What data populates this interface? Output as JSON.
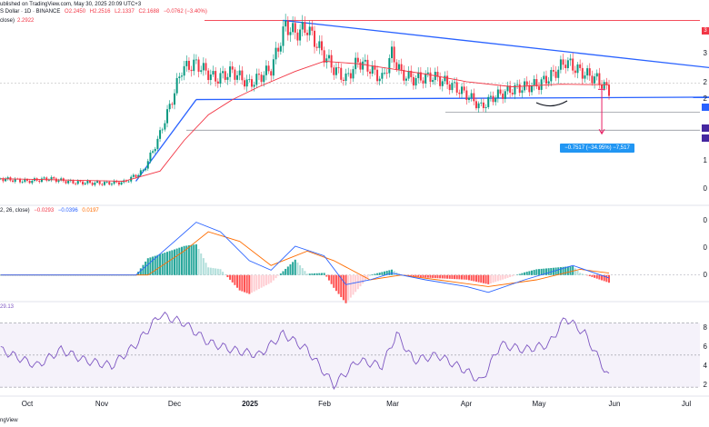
{
  "header": {
    "published": "ublished on TradingView.com, May 30, 2025 20:09 UTC+3",
    "symbol": "S Dollar · 1D · BINANCE",
    "ohlc": {
      "o": "O2.2450",
      "h": "H2.2516",
      "l": "L2.1337",
      "c": "C2.1688",
      "chg": "−0.0762 (−3.40%)"
    },
    "ma_label": "close)",
    "ma_value": "2.2922",
    "macd_label": "2, 26, close)",
    "macd_values": [
      "−0.0293",
      "−0.0396",
      "0.0197"
    ],
    "rsi_value": "29.13"
  },
  "colors": {
    "up": "#089981",
    "down": "#f23645",
    "ma": "#f23645",
    "trend": "#2962ff",
    "macd": "#2962ff",
    "signal": "#ff6d00",
    "rsi": "#7e57c2"
  },
  "price_tags": [
    {
      "color": "#f23645",
      "text": "3"
    },
    {
      "color": "#2962ff",
      "text": ""
    },
    {
      "color": "#4527a0",
      "text": ""
    },
    {
      "color": "#4527a0",
      "text": ""
    }
  ],
  "y_labels": [
    "3",
    "2",
    "2",
    "1",
    "0",
    "0",
    "0",
    "0",
    "8",
    "6",
    "4",
    "2"
  ],
  "measure": {
    "text": "−0.7517 (−34.95%) −7,517"
  },
  "x_labels": [
    {
      "t": "Oct",
      "bold": false
    },
    {
      "t": "Nov",
      "bold": false
    },
    {
      "t": "Dec",
      "bold": false
    },
    {
      "t": "2025",
      "bold": true
    },
    {
      "t": "Feb",
      "bold": false
    },
    {
      "t": "Mar",
      "bold": false
    },
    {
      "t": "Apr",
      "bold": false
    },
    {
      "t": "May",
      "bold": false
    },
    {
      "t": "Jun",
      "bold": false
    },
    {
      "t": "Jul",
      "bold": false
    }
  ],
  "footer": "ngView",
  "chart_data": {
    "type": "candlestick",
    "x_ticks": [
      "Oct",
      "Nov",
      "Dec",
      "2025",
      "Feb",
      "Mar",
      "Apr",
      "May",
      "Jun",
      "Jul"
    ],
    "price_ylim": [
      0.0,
      3.7
    ],
    "price_path": [
      [
        "2024-09-20",
        0.45
      ],
      [
        "2024-10-01",
        0.4
      ],
      [
        "2024-10-10",
        0.45
      ],
      [
        "2024-10-20",
        0.38
      ],
      [
        "2024-11-01",
        0.36
      ],
      [
        "2024-11-10",
        0.38
      ],
      [
        "2024-11-18",
        0.6
      ],
      [
        "2024-11-24",
        1.2
      ],
      [
        "2024-11-30",
        2.0
      ],
      [
        "2024-12-04",
        2.6
      ],
      [
        "2024-12-10",
        2.7
      ],
      [
        "2024-12-18",
        2.4
      ],
      [
        "2024-12-25",
        2.55
      ],
      [
        "2025-01-01",
        2.3
      ],
      [
        "2025-01-10",
        2.6
      ],
      [
        "2025-01-16",
        3.45
      ],
      [
        "2025-01-20",
        3.3
      ],
      [
        "2025-01-25",
        3.4
      ],
      [
        "2025-01-30",
        3.0
      ],
      [
        "2025-02-05",
        2.6
      ],
      [
        "2025-02-10",
        2.4
      ],
      [
        "2025-02-15",
        2.75
      ],
      [
        "2025-02-20",
        2.6
      ],
      [
        "2025-02-25",
        2.4
      ],
      [
        "2025-03-01",
        2.9
      ],
      [
        "2025-03-05",
        2.5
      ],
      [
        "2025-03-10",
        2.4
      ],
      [
        "2025-03-18",
        2.45
      ],
      [
        "2025-03-25",
        2.3
      ],
      [
        "2025-04-01",
        2.1
      ],
      [
        "2025-04-07",
        1.85
      ],
      [
        "2025-04-12",
        2.05
      ],
      [
        "2025-04-20",
        2.2
      ],
      [
        "2025-05-01",
        2.3
      ],
      [
        "2025-05-07",
        2.5
      ],
      [
        "2025-05-12",
        2.75
      ],
      [
        "2025-05-18",
        2.55
      ],
      [
        "2025-05-25",
        2.4
      ],
      [
        "2025-05-30",
        2.17
      ]
    ],
    "ma_path": [
      [
        "2024-09-20",
        0.45
      ],
      [
        "2024-11-10",
        0.4
      ],
      [
        "2024-11-25",
        0.6
      ],
      [
        "2024-12-05",
        1.2
      ],
      [
        "2024-12-15",
        1.7
      ],
      [
        "2024-12-25",
        2.0
      ],
      [
        "2025-01-05",
        2.25
      ],
      [
        "2025-01-20",
        2.55
      ],
      [
        "2025-02-01",
        2.75
      ],
      [
        "2025-02-15",
        2.7
      ],
      [
        "2025-03-01",
        2.6
      ],
      [
        "2025-03-15",
        2.5
      ],
      [
        "2025-04-01",
        2.35
      ],
      [
        "2025-04-20",
        2.25
      ],
      [
        "2025-05-10",
        2.3
      ],
      [
        "2025-05-30",
        2.29
      ]
    ],
    "trendlines": [
      {
        "name": "upper",
        "from": [
          "2025-01-15",
          3.55
        ],
        "to": [
          "2025-07-25",
          2.55
        ]
      },
      {
        "name": "lower",
        "from": [
          "2024-12-10",
          2.0
        ],
        "to": [
          "2025-07-25",
          2.05
        ]
      },
      {
        "name": "rise",
        "from": [
          "2024-11-15",
          0.4
        ],
        "to": [
          "2024-12-10",
          2.0
        ]
      }
    ],
    "levels": [
      3.55,
      2.32,
      1.75,
      1.4
    ],
    "measure_target": 1.4,
    "macd": {
      "macd_path": [
        [
          "2024-09-20",
          0.0
        ],
        [
          "2024-11-15",
          0.0
        ],
        [
          "2024-12-01",
          0.35
        ],
        [
          "2024-12-10",
          0.55
        ],
        [
          "2024-12-20",
          0.45
        ],
        [
          "2025-01-01",
          0.15
        ],
        [
          "2025-01-10",
          0.05
        ],
        [
          "2025-01-20",
          0.3
        ],
        [
          "2025-02-01",
          0.2
        ],
        [
          "2025-02-10",
          -0.1
        ],
        [
          "2025-02-20",
          -0.05
        ],
        [
          "2025-03-01",
          0.02
        ],
        [
          "2025-03-15",
          -0.05
        ],
        [
          "2025-04-01",
          -0.12
        ],
        [
          "2025-04-10",
          -0.18
        ],
        [
          "2025-04-25",
          -0.05
        ],
        [
          "2025-05-15",
          0.1
        ],
        [
          "2025-05-30",
          -0.03
        ]
      ],
      "signal_path": [
        [
          "2024-09-20",
          0.0
        ],
        [
          "2024-11-20",
          0.0
        ],
        [
          "2024-12-05",
          0.25
        ],
        [
          "2024-12-15",
          0.45
        ],
        [
          "2024-12-28",
          0.35
        ],
        [
          "2025-01-10",
          0.1
        ],
        [
          "2025-01-25",
          0.25
        ],
        [
          "2025-02-05",
          0.15
        ],
        [
          "2025-02-20",
          -0.05
        ],
        [
          "2025-03-05",
          0.0
        ],
        [
          "2025-03-20",
          -0.05
        ],
        [
          "2025-04-10",
          -0.12
        ],
        [
          "2025-04-30",
          -0.05
        ],
        [
          "2025-05-18",
          0.06
        ],
        [
          "2025-05-30",
          0.02
        ]
      ],
      "ylim": [
        -0.22,
        0.65
      ]
    },
    "rsi": {
      "path": [
        [
          "2024-09-20",
          55
        ],
        [
          "2024-10-05",
          40
        ],
        [
          "2024-10-15",
          55
        ],
        [
          "2024-10-25",
          45
        ],
        [
          "2024-11-05",
          40
        ],
        [
          "2024-11-15",
          60
        ],
        [
          "2024-11-25",
          88
        ],
        [
          "2024-12-05",
          80
        ],
        [
          "2024-12-15",
          62
        ],
        [
          "2024-12-25",
          55
        ],
        [
          "2025-01-05",
          50
        ],
        [
          "2025-01-15",
          70
        ],
        [
          "2025-01-25",
          55
        ],
        [
          "2025-02-05",
          22
        ],
        [
          "2025-02-15",
          45
        ],
        [
          "2025-02-25",
          40
        ],
        [
          "2025-03-03",
          70
        ],
        [
          "2025-03-10",
          45
        ],
        [
          "2025-03-20",
          50
        ],
        [
          "2025-04-01",
          35
        ],
        [
          "2025-04-07",
          25
        ],
        [
          "2025-04-15",
          60
        ],
        [
          "2025-04-25",
          55
        ],
        [
          "2025-05-05",
          60
        ],
        [
          "2025-05-12",
          85
        ],
        [
          "2025-05-20",
          70
        ],
        [
          "2025-05-30",
          29
        ]
      ],
      "overbought": 80,
      "oversold": 20,
      "ylim": [
        15,
        95
      ]
    }
  }
}
